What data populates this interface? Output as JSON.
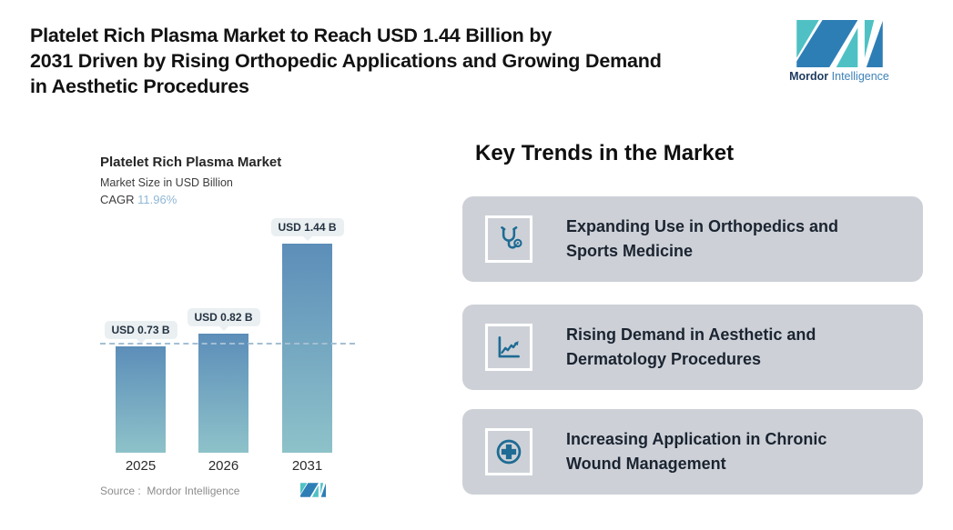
{
  "header": {
    "title_lines": [
      "Platelet Rich Plasma Market to Reach USD 1.44 Billion by",
      "2031 Driven by Rising Orthopedic Applications and Growing Demand",
      "in Aesthetic Procedures"
    ],
    "brand": {
      "name_bold": "Mordor",
      "name_light": " Intelligence"
    }
  },
  "chart_data": {
    "type": "bar",
    "title": "Platelet Rich Plasma Market",
    "subtitle": "Market Size in USD Billion",
    "cagr_label": "CAGR ",
    "cagr_value": "11.96%",
    "categories": [
      "2025",
      "2026",
      "2031"
    ],
    "values": [
      0.73,
      0.82,
      1.44
    ],
    "value_labels": [
      "USD 0.73 B",
      "USD 0.82 B",
      "USD 1.44 B"
    ],
    "unit": "USD Billion",
    "ylim": [
      0,
      1.6
    ],
    "grid": false,
    "legend": "none",
    "reference_line": {
      "style": "dashed",
      "at_value": 0.73
    },
    "bar_gradient_top": "#5c8eb9",
    "bar_gradient_bottom": "#8ec2c9",
    "source": "Source :  Mordor Intelligence"
  },
  "key_trends": {
    "heading": "Key Trends in the Market",
    "cards": [
      {
        "icon": "stethoscope-icon",
        "lines": [
          "Expanding Use in Orthopedics and",
          "Sports Medicine"
        ]
      },
      {
        "icon": "line-chart-icon",
        "lines": [
          "Rising Demand in Aesthetic and",
          "Dermatology Procedures"
        ]
      },
      {
        "icon": "medical-cross-icon",
        "lines": [
          "Increasing Application in Chronic",
          "Wound Management"
        ]
      }
    ]
  },
  "colors": {
    "brand_teal": "#4fc1c4",
    "brand_blue": "#2e7eb6",
    "card_background": "#cdd1d7",
    "icon_blue": "#1e6b94",
    "cagr_blue": "#8fb7d6",
    "dashed_line": "#a4bfd4",
    "bubble_background": "#eaeff2"
  }
}
